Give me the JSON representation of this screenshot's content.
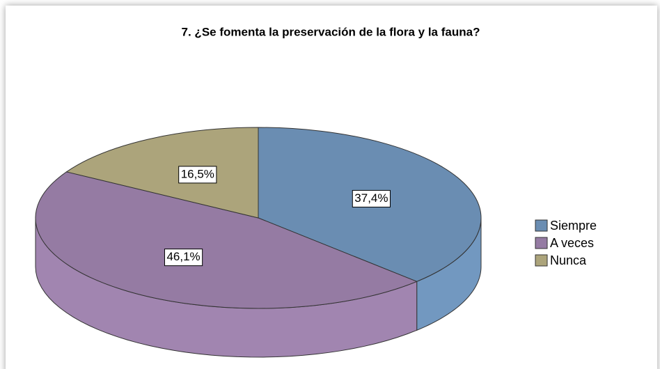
{
  "chart_data": {
    "type": "pie",
    "title": "7. ¿Se fomenta la preservación de la flora y la fauna?",
    "categories": [
      "Siempre",
      "A veces",
      "Nunca"
    ],
    "values": [
      37.4,
      46.1,
      16.5
    ],
    "value_labels": [
      "37,4%",
      "46,1%",
      "16,5%"
    ],
    "colors": [
      "#6a8db2",
      "#957ba3",
      "#aca47b"
    ],
    "legend": "right"
  }
}
